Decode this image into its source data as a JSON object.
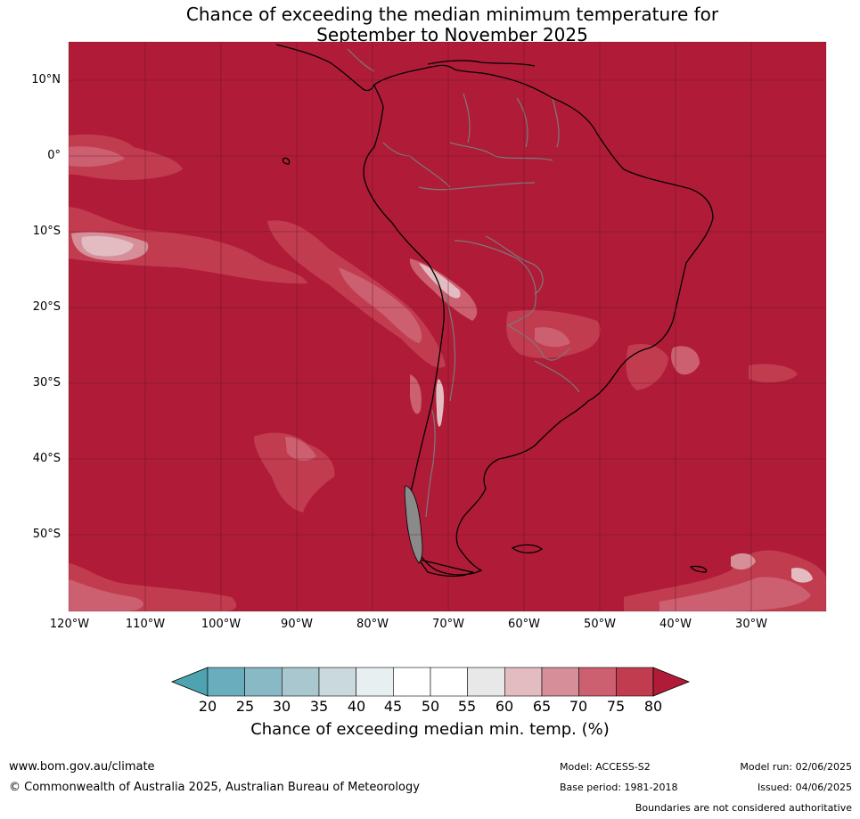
{
  "title": {
    "line1": "Chance of exceeding the median minimum temperature for",
    "line2": "September to November 2025"
  },
  "map": {
    "region": "South America and surrounding oceans",
    "lat_labels": [
      "10°N",
      "0°",
      "10°S",
      "20°S",
      "30°S",
      "40°S",
      "50°S"
    ],
    "lon_labels": [
      "120°W",
      "110°W",
      "100°W",
      "90°W",
      "80°W",
      "70°W",
      "60°W",
      "50°W",
      "40°W",
      "30°W"
    ],
    "dominant_category": "above 80%",
    "colors": {
      "above_80": "#b01c38",
      "c75_80": "#c23c50",
      "c70_75": "#cc6070",
      "c65_70": "#d68f98",
      "c60_65": "#e3bcc1",
      "land_border": "#7a7a7a",
      "coastline": "#000000",
      "grid": "#5c1020"
    }
  },
  "colorbar": {
    "ticks": [
      "20",
      "25",
      "30",
      "35",
      "40",
      "45",
      "50",
      "55",
      "60",
      "65",
      "70",
      "75",
      "80"
    ],
    "colors": [
      "#6aaebd",
      "#8ab9c6",
      "#a9c7ce",
      "#cad9dd",
      "#e8eff1",
      "#ffffff",
      "#ffffff",
      "#e8e8e8",
      "#e3bcc1",
      "#d68f98",
      "#cc6070",
      "#c23c50"
    ],
    "low_extend_color": "#4ea3b1",
    "high_extend_color": "#b01c38",
    "label": "Chance of exceeding median min. temp. (%)"
  },
  "footer": {
    "website": "www.bom.gov.au/climate",
    "copyright": "© Commonwealth of Australia 2025, Australian Bureau of Meteorology",
    "model": "Model: ACCESS-S2",
    "base_period": "Base period: 1981-2018",
    "model_run": "Model run: 02/06/2025",
    "issued": "Issued: 04/06/2025",
    "disclaimer": "Boundaries are not considered authoritative"
  }
}
